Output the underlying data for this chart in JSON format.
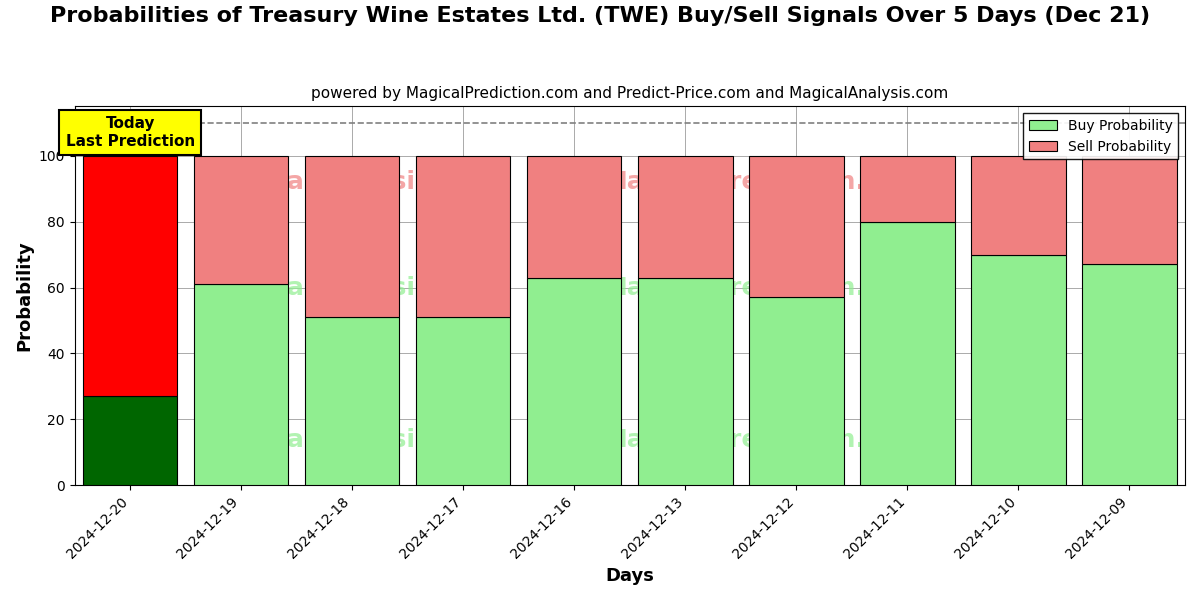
{
  "title": "Probabilities of Treasury Wine Estates Ltd. (TWE) Buy/Sell Signals Over 5 Days (Dec 21)",
  "subtitle": "powered by MagicalPrediction.com and Predict-Price.com and MagicalAnalysis.com",
  "xlabel": "Days",
  "ylabel": "Probability",
  "categories": [
    "2024-12-20",
    "2024-12-19",
    "2024-12-18",
    "2024-12-17",
    "2024-12-16",
    "2024-12-13",
    "2024-12-12",
    "2024-12-11",
    "2024-12-10",
    "2024-12-09"
  ],
  "buy_values": [
    27,
    61,
    51,
    51,
    63,
    63,
    57,
    80,
    70,
    67
  ],
  "sell_values": [
    73,
    39,
    49,
    49,
    37,
    37,
    43,
    20,
    30,
    33
  ],
  "today_bar_buy_color": "#006600",
  "today_bar_sell_color": "#ff0000",
  "other_bar_buy_color": "#90ee90",
  "other_bar_sell_color": "#f08080",
  "today_label_bg": "#ffff00",
  "today_label_text": "Today\nLast Prediction",
  "dashed_line_y": 110,
  "ylim": [
    0,
    115
  ],
  "yticks": [
    0,
    20,
    40,
    60,
    80,
    100
  ],
  "legend_buy_label": "Buy Probability",
  "legend_sell_label": "Sell Probability",
  "background_color": "#ffffff",
  "grid_color": "#aaaaaa",
  "title_fontsize": 16,
  "subtitle_fontsize": 11,
  "bar_width": 0.85
}
